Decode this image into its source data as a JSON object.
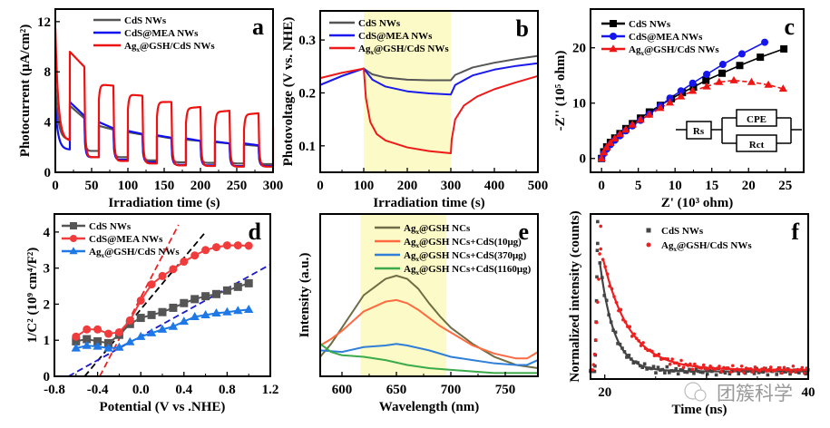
{
  "figure": {
    "watermark": "团簇科学"
  },
  "chart_data": [
    {
      "panel": "a",
      "type": "line",
      "xlabel": "Irradiation time (s)",
      "ylabel": "Photocurrent (μA/cm²)",
      "xlim": [
        0,
        300
      ],
      "ylim": [
        0,
        13
      ],
      "xticks": [
        "0",
        "50",
        "100",
        "150",
        "200",
        "250",
        "300"
      ],
      "xtick_values": [
        0,
        50,
        100,
        150,
        200,
        250,
        300
      ],
      "yticks": [
        "0",
        "4",
        "8",
        "12"
      ],
      "ytick_values": [
        0,
        4,
        8,
        12
      ],
      "legend_position": "top-left",
      "light_on_off_period_s": 20,
      "series": [
        {
          "name": "CdS NWs",
          "color": "#555555",
          "on_start": [
            0,
            5.3,
            3.7,
            3.2,
            2.9,
            2.6,
            2.4,
            2.2
          ],
          "on_end": [
            0,
            4.3,
            3.4,
            3.0,
            2.7,
            2.5,
            2.3,
            2.1
          ],
          "off_level": [
            2.6,
            1.7,
            1.2,
            0.95,
            0.8,
            0.75,
            0.7,
            0.65
          ]
        },
        {
          "name": "CdS@MEA NWs",
          "color": "#1010ee",
          "on_start": [
            0,
            5.6,
            4.0,
            3.3,
            2.95,
            2.7,
            2.45,
            2.3
          ],
          "on_end": [
            0,
            4.5,
            3.5,
            3.05,
            2.75,
            2.5,
            2.3,
            2.15
          ],
          "off_level": [
            1.8,
            1.2,
            1.0,
            0.8,
            0.6,
            0.55,
            0.5,
            0.5
          ]
        },
        {
          "name": "Agx@GSH/CdS NWs",
          "color": "#ee1111",
          "on_start": [
            11.5,
            9.6,
            7.0,
            6.2,
            5.6,
            5.1,
            4.8,
            4.6
          ],
          "on_end": [
            0,
            8.4,
            6.9,
            6.1,
            5.6,
            5.2,
            4.9,
            4.7
          ],
          "off_level": [
            2.5,
            1.2,
            0.9,
            0.7,
            0.55,
            0.5,
            0.45,
            0.45
          ]
        }
      ]
    },
    {
      "panel": "b",
      "type": "line",
      "xlabel": "Irradiation time (s)",
      "ylabel": "Photovoltage (V vs. NHE)",
      "xlim": [
        0,
        500
      ],
      "ylim": [
        0.05,
        0.355
      ],
      "xticks": [
        "0",
        "100",
        "200",
        "300",
        "400",
        "500"
      ],
      "xtick_values": [
        0,
        100,
        200,
        300,
        400,
        500
      ],
      "yticks": [
        "0.1",
        "0.2",
        "0.3"
      ],
      "ytick_values": [
        0.1,
        0.2,
        0.3
      ],
      "highlight_range_x": [
        100,
        300
      ],
      "highlight_color": "#fcfac6",
      "legend_position": "top-left",
      "series": [
        {
          "name": "CdS NWs",
          "color": "#555555",
          "x": [
            0,
            50,
            100,
            120,
            150,
            200,
            250,
            300,
            310,
            350,
            400,
            450,
            500
          ],
          "y": [
            0.215,
            0.232,
            0.246,
            0.235,
            0.229,
            0.225,
            0.224,
            0.224,
            0.234,
            0.248,
            0.257,
            0.264,
            0.27
          ]
        },
        {
          "name": "CdS@MEA NWs",
          "color": "#1a1aee",
          "x": [
            0,
            50,
            100,
            120,
            150,
            200,
            250,
            300,
            310,
            350,
            400,
            450,
            500
          ],
          "y": [
            0.215,
            0.232,
            0.246,
            0.225,
            0.212,
            0.203,
            0.199,
            0.197,
            0.215,
            0.233,
            0.244,
            0.251,
            0.256
          ]
        },
        {
          "name": "Agx@GSH/CdS NWs",
          "color": "#ee1a1a",
          "x": [
            0,
            50,
            100,
            105,
            115,
            130,
            150,
            200,
            250,
            300,
            302,
            310,
            330,
            360,
            400,
            450,
            500
          ],
          "y": [
            0.228,
            0.238,
            0.246,
            0.19,
            0.145,
            0.122,
            0.11,
            0.097,
            0.09,
            0.086,
            0.112,
            0.15,
            0.176,
            0.193,
            0.207,
            0.22,
            0.232
          ]
        }
      ]
    },
    {
      "panel": "c",
      "type": "scatter",
      "xlabel": "Z' (10³ ohm)",
      "ylabel": "-Z'' (10⁵ ohm)",
      "xlim": [
        -1.5,
        27.5
      ],
      "ylim": [
        -2.5,
        27
      ],
      "xticks": [
        "0",
        "5",
        "10",
        "15",
        "20",
        "25"
      ],
      "xtick_values": [
        0,
        5,
        10,
        15,
        20,
        25
      ],
      "yticks": [
        "0",
        "10",
        "20"
      ],
      "ytick_values": [
        0,
        10,
        20
      ],
      "legend_position": "top-left",
      "inset_circuit": {
        "labels": [
          "Rs",
          "CPE",
          "Rct"
        ]
      },
      "series": [
        {
          "name": "CdS NWs",
          "color": "#000000",
          "marker": "square",
          "linestyle": "solid",
          "x": [
            0,
            0.3,
            0.7,
            1.2,
            1.8,
            2.5,
            3.3,
            4.2,
            5.3,
            6.5,
            8,
            9.5,
            11,
            12.5,
            14.2,
            16.4,
            18.8,
            21.6,
            24.8
          ],
          "y": [
            0,
            1.2,
            2.1,
            2.9,
            3.7,
            4.5,
            5.4,
            6.3,
            7.3,
            8.4,
            9.6,
            10.8,
            11.9,
            12.9,
            14.1,
            15.4,
            16.8,
            18.3,
            19.8
          ]
        },
        {
          "name": "CdS@MEA NWs",
          "color": "#1515ee",
          "marker": "circle",
          "linestyle": "solid",
          "x": [
            0,
            0.3,
            0.7,
            1.2,
            1.8,
            2.5,
            3.3,
            4.2,
            5.3,
            6.5,
            8,
            9.3,
            10.8,
            12.4,
            14.3,
            16.5,
            19.1,
            22.2
          ],
          "y": [
            0,
            0.9,
            1.7,
            2.5,
            3.3,
            4.1,
            5.0,
            5.9,
            6.9,
            8.0,
            9.5,
            10.9,
            12.2,
            13.6,
            15.2,
            17.0,
            18.9,
            21.0
          ]
        },
        {
          "name": "Agx@GSH/CdS NWs",
          "color": "#ee1515",
          "marker": "triangle",
          "linestyle": "dashed",
          "x": [
            0,
            0.3,
            0.7,
            1.2,
            1.8,
            2.5,
            3.3,
            4.2,
            5.3,
            6.5,
            8,
            9.3,
            10.8,
            12.4,
            14.3,
            16,
            18,
            20.4,
            22.7,
            24.7
          ],
          "y": [
            0,
            1.1,
            2.0,
            2.8,
            3.6,
            4.4,
            5.2,
            6.1,
            7.0,
            7.9,
            9.1,
            10.1,
            11.2,
            12.2,
            13.0,
            13.8,
            14.1,
            13.8,
            13.3,
            12.6
          ]
        }
      ]
    },
    {
      "panel": "d",
      "type": "line",
      "xlabel": "Potential (V vs .NHE)",
      "ylabel": "1/C² (10⁹ cm⁴/F²)",
      "xlim": [
        -0.8,
        1.2
      ],
      "ylim": [
        0,
        4.5
      ],
      "xticks": [
        "-0.8",
        "-0.4",
        "0.0",
        "0.4",
        "0.8",
        "1.2"
      ],
      "xtick_values": [
        -0.8,
        -0.4,
        0.0,
        0.4,
        0.8,
        1.2
      ],
      "yticks": [
        "0",
        "1",
        "2",
        "3",
        "4"
      ],
      "ytick_values": [
        0,
        1,
        2,
        3,
        4
      ],
      "legend_position": "top-left",
      "series": [
        {
          "name": "CdS NWs",
          "color": "#555555",
          "marker": "square",
          "x": [
            -0.6,
            -0.5,
            -0.4,
            -0.3,
            -0.2,
            -0.1,
            0.0,
            0.1,
            0.2,
            0.3,
            0.4,
            0.5,
            0.6,
            0.7,
            0.8,
            0.9,
            1.0
          ],
          "y": [
            0.97,
            1.03,
            0.97,
            0.92,
            1.15,
            1.45,
            1.62,
            1.7,
            1.78,
            1.9,
            2.03,
            2.14,
            2.22,
            2.28,
            2.38,
            2.48,
            2.58
          ]
        },
        {
          "name": "CdS@MEA NWs",
          "color": "#f03c3c",
          "marker": "circle",
          "x": [
            -0.6,
            -0.5,
            -0.4,
            -0.3,
            -0.2,
            -0.1,
            0.0,
            0.1,
            0.2,
            0.3,
            0.4,
            0.5,
            0.6,
            0.7,
            0.8,
            0.9,
            1.0
          ],
          "y": [
            1.1,
            1.3,
            1.3,
            1.18,
            1.22,
            1.55,
            2.1,
            2.55,
            2.78,
            2.97,
            3.18,
            3.35,
            3.5,
            3.58,
            3.63,
            3.63,
            3.62
          ]
        },
        {
          "name": "Agx@GSH/CdS NWs",
          "color": "#1e78e6",
          "marker": "triangle",
          "x": [
            -0.6,
            -0.5,
            -0.4,
            -0.3,
            -0.2,
            -0.1,
            0.0,
            0.1,
            0.2,
            0.3,
            0.4,
            0.5,
            0.6,
            0.7,
            0.8,
            0.9,
            1.0
          ],
          "y": [
            0.78,
            0.85,
            0.83,
            0.78,
            0.8,
            0.95,
            1.1,
            1.2,
            1.3,
            1.38,
            1.52,
            1.65,
            1.7,
            1.75,
            1.78,
            1.82,
            1.85
          ]
        }
      ],
      "fit_lines": [
        {
          "color": "#000000",
          "x0": -0.52,
          "x1": 0.6,
          "y0": 0,
          "y1": 4.0
        },
        {
          "color": "#ee2020",
          "x0": -0.38,
          "x1": 0.35,
          "y0": 0,
          "y1": 4.2
        },
        {
          "color": "#1a1acc",
          "x0": -0.67,
          "x1": 1.2,
          "y0": 0,
          "y1": 3.1
        }
      ]
    },
    {
      "panel": "e",
      "type": "line",
      "xlabel": "Wavelength (nm)",
      "ylabel": "Intensity (a.u.)",
      "xlim": [
        580,
        780
      ],
      "ylim": [
        0,
        1
      ],
      "xticks": [
        "600",
        "650",
        "700",
        "750"
      ],
      "xtick_values": [
        600,
        650,
        700,
        750
      ],
      "highlight_range_x": [
        617,
        696
      ],
      "highlight_color": "#fcfac6",
      "legend_position": "top-right",
      "series": [
        {
          "name": "Agx@GSH NCs",
          "color": "#6f6d45",
          "x": [
            580,
            590,
            600,
            610,
            620,
            630,
            640,
            650,
            660,
            670,
            680,
            690,
            700,
            720,
            740,
            760,
            780
          ],
          "y": [
            0.12,
            0.2,
            0.3,
            0.4,
            0.5,
            0.55,
            0.6,
            0.62,
            0.6,
            0.54,
            0.45,
            0.37,
            0.3,
            0.2,
            0.12,
            0.07,
            0.05
          ]
        },
        {
          "name": "Agx@GSH NCs+CdS(10μg)",
          "color": "#ff6a40",
          "x": [
            580,
            590,
            600,
            610,
            620,
            630,
            640,
            650,
            660,
            670,
            680,
            690,
            700,
            720,
            740,
            760,
            770,
            780
          ],
          "y": [
            0.19,
            0.23,
            0.28,
            0.34,
            0.4,
            0.43,
            0.46,
            0.47,
            0.45,
            0.41,
            0.36,
            0.31,
            0.27,
            0.19,
            0.14,
            0.11,
            0.11,
            0.15
          ]
        },
        {
          "name": "Agx@GSH NCs+CdS(370μg)",
          "color": "#2f7fd8",
          "x": [
            580,
            600,
            620,
            640,
            650,
            660,
            680,
            700,
            720,
            740,
            760,
            770,
            780
          ],
          "y": [
            0.16,
            0.15,
            0.18,
            0.19,
            0.2,
            0.19,
            0.16,
            0.12,
            0.1,
            0.08,
            0.07,
            0.07,
            0.1
          ]
        },
        {
          "name": "Agx@GSH NCs+CdS(1160μg)",
          "color": "#3aaa4a",
          "x": [
            580,
            590,
            600,
            620,
            640,
            660,
            680,
            700,
            720,
            740,
            760,
            780
          ],
          "y": [
            0.2,
            0.15,
            0.13,
            0.12,
            0.1,
            0.07,
            0.05,
            0.04,
            0.03,
            0.02,
            0.02,
            0.02
          ]
        }
      ]
    },
    {
      "panel": "f",
      "type": "scatter",
      "xlabel": "Time (ns)",
      "ylabel": "Normalized intensity (counts)",
      "xlim": [
        18.6,
        40
      ],
      "ylim": [
        -0.03,
        1.05
      ],
      "xticks": [
        "20",
        "30",
        "40"
      ],
      "xtick_values": [
        20,
        30,
        40
      ],
      "legend_position": "top-right",
      "series": [
        {
          "name": "CdS NWs",
          "color": "#444444",
          "marker": "square",
          "peak_x": 19.3,
          "rise_start": 19.0,
          "tau_ns": 1.4,
          "baseline": 0.02,
          "peak_y": 1.0
        },
        {
          "name": "Agx@GSH/CdS NWs",
          "color": "#ee1f1f",
          "marker": "circle",
          "peak_x": 19.6,
          "rise_start": 18.8,
          "tau_ns": 2.6,
          "baseline": 0.03,
          "peak_y": 0.97
        }
      ]
    }
  ]
}
